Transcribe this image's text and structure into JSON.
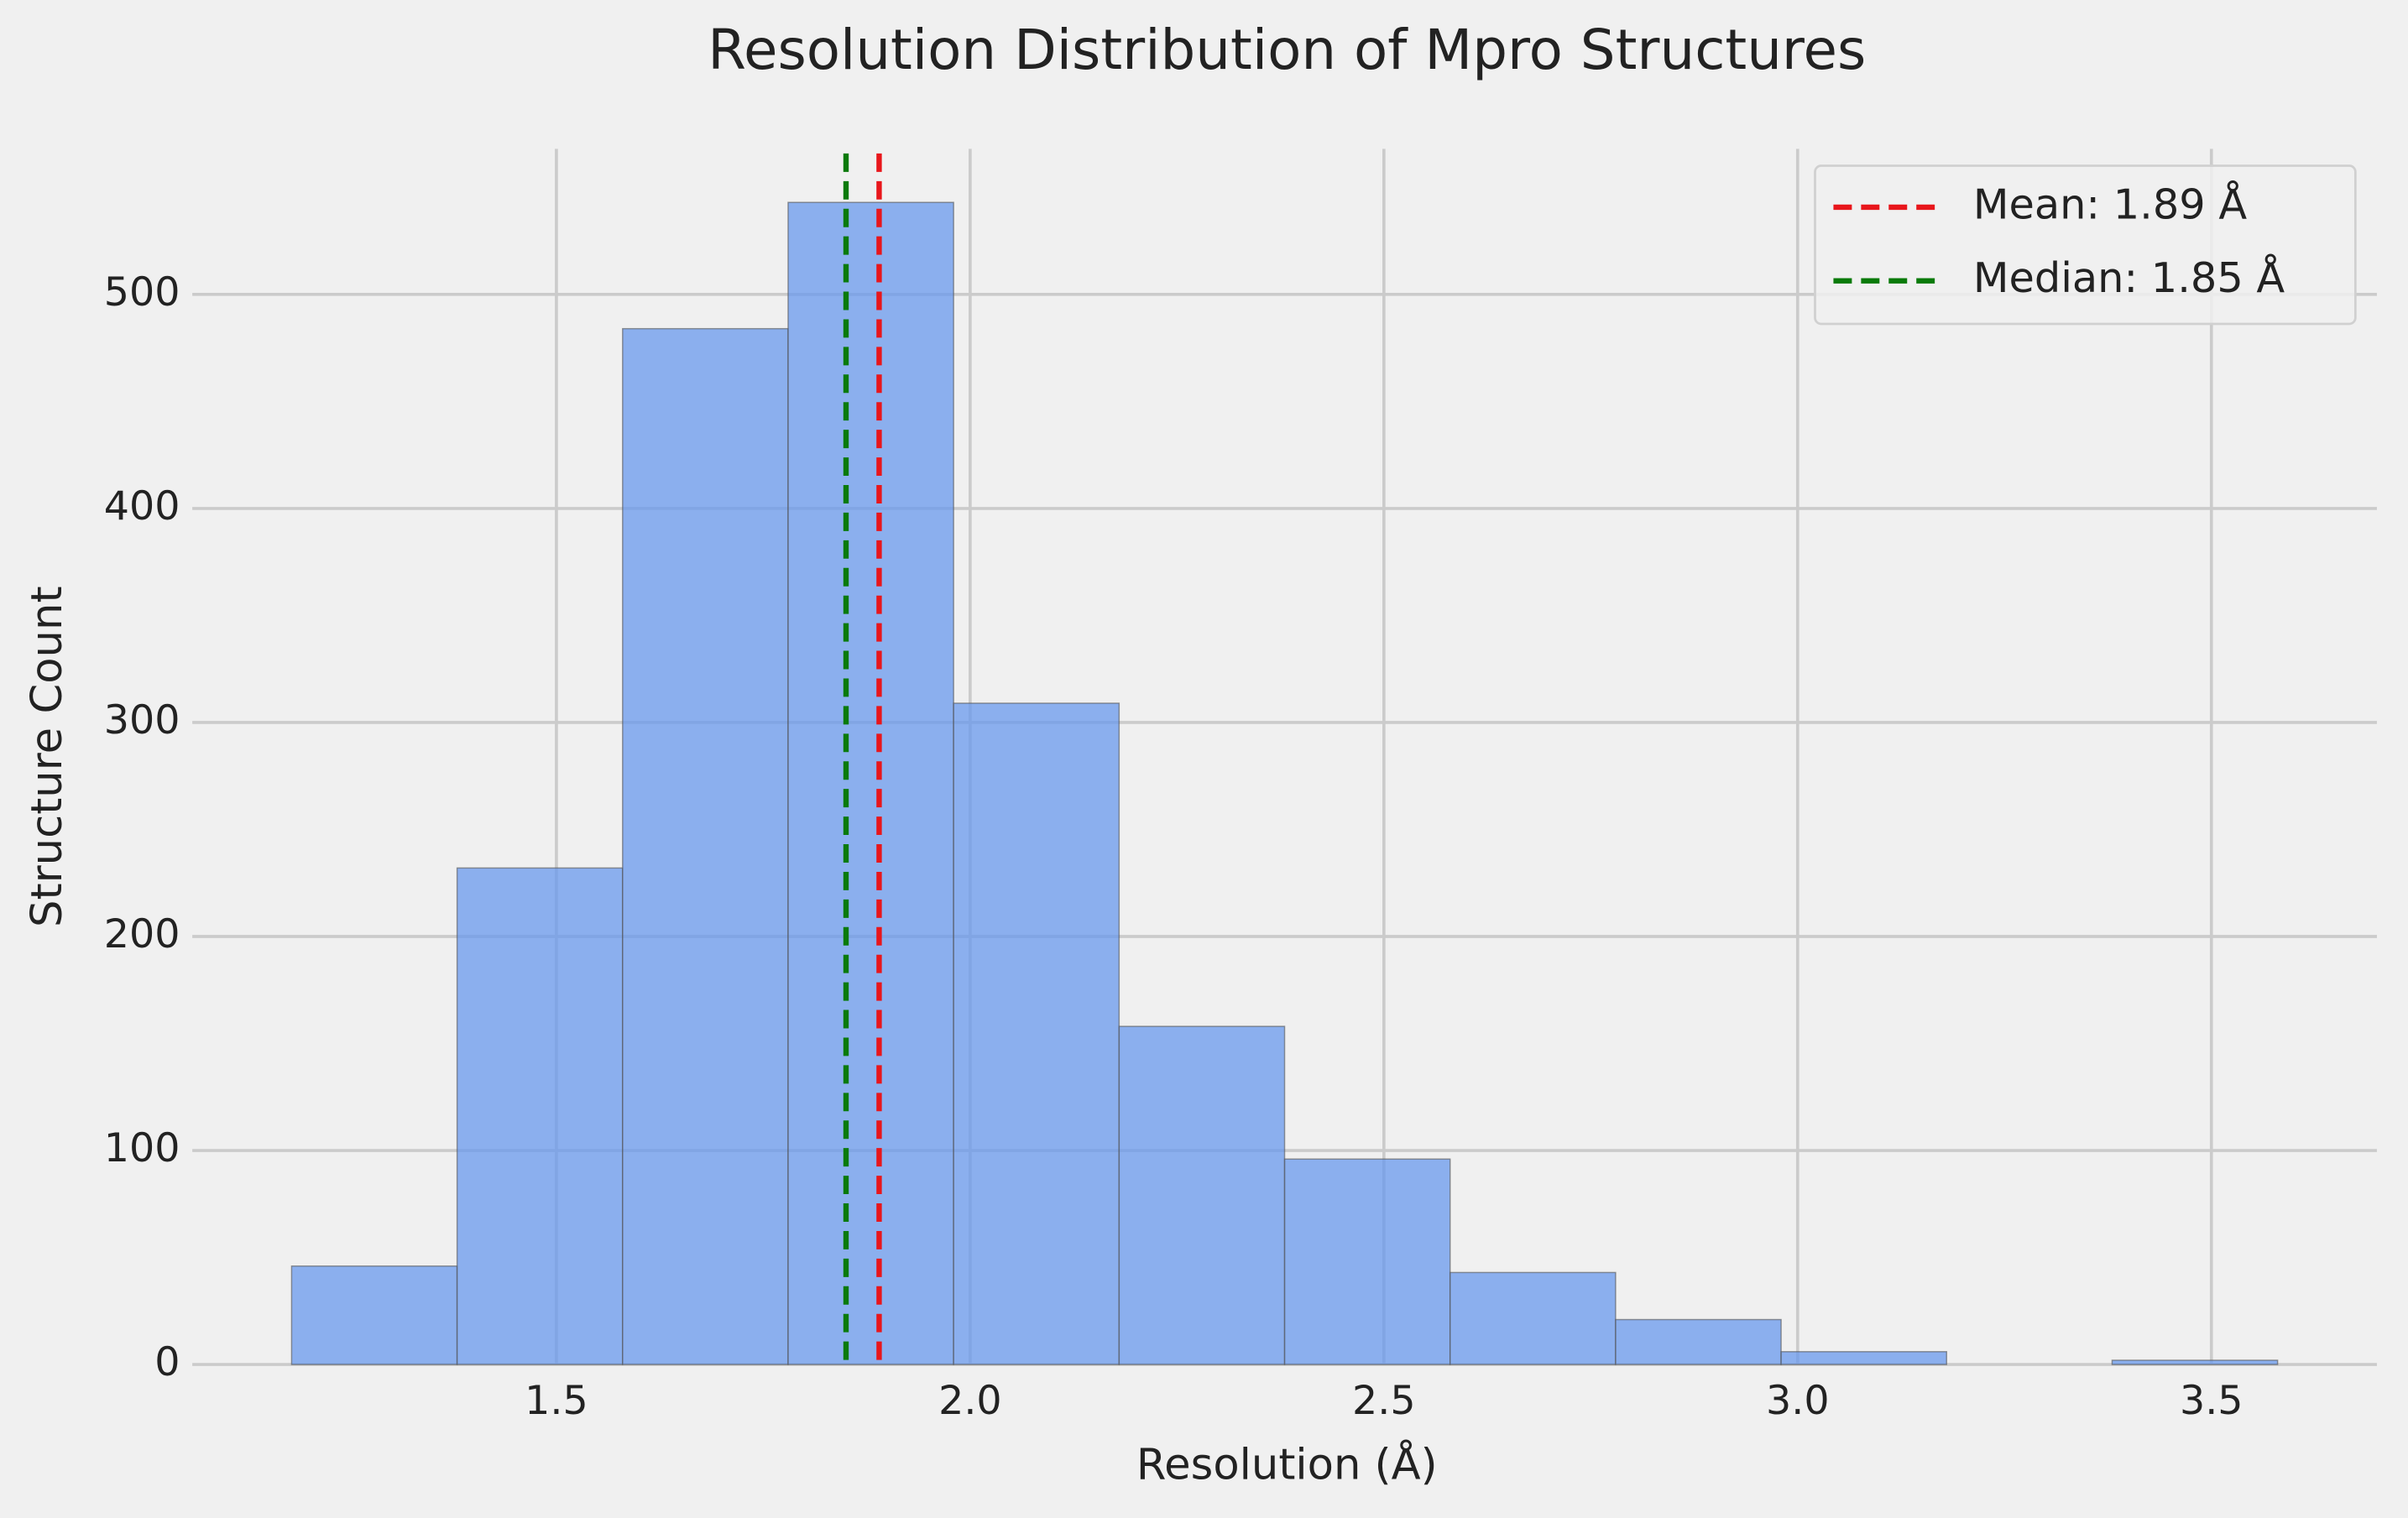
{
  "chart_data": {
    "type": "histogram",
    "title": "Resolution Distribution of Mpro Structures",
    "xlabel": "Resolution (Å)",
    "ylabel": "Structure Count",
    "bins": [
      1.18,
      1.38,
      1.58,
      1.78,
      1.98,
      2.18,
      2.38,
      2.58,
      2.78,
      2.98,
      3.18,
      3.38,
      3.58
    ],
    "values": [
      46,
      232,
      484,
      543,
      309,
      158,
      96,
      43,
      21,
      6,
      0,
      2
    ],
    "color": "#6495ED",
    "edgecolor": "#555555",
    "xlim": [
      1.06,
      3.7
    ],
    "ylim": [
      0,
      568
    ],
    "xticks": [
      1.5,
      {
        "value": 2,
        "label": "2.0"
      },
      2.5,
      {
        "value": 3,
        "label": "3.0"
      },
      3.5
    ],
    "yticks": [
      0,
      100,
      200,
      300,
      400,
      500
    ],
    "grid": true,
    "legend": "upper right",
    "vlines": [
      {
        "name": "Mean: 1.89 Å",
        "value": 1.89,
        "color": "#e8161b"
      },
      {
        "name": "Median: 1.85 Å",
        "value": 1.85,
        "color": "#0a7a0a"
      }
    ]
  }
}
